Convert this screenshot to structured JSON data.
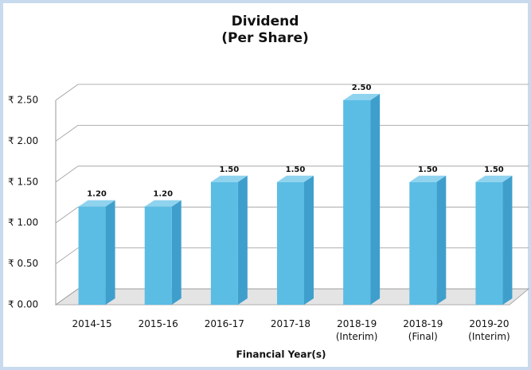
{
  "chart_data": {
    "type": "bar3d",
    "title": "Dividend",
    "subtitle": "(Per Share)",
    "x_label": "Financial Year(s)",
    "categories": [
      "2014-15",
      "2015-16",
      "2016-17",
      "2017-18",
      "2018-19 (Interim)",
      "2018-19 (Final)",
      "2019-20 (Interim)"
    ],
    "values": [
      1.2,
      1.2,
      1.5,
      1.5,
      2.5,
      1.5,
      1.5
    ],
    "value_labels": [
      "1.20",
      "1.20",
      "1.50",
      "1.50",
      "2.50",
      "1.50",
      "1.50"
    ],
    "color": "#5bbde4",
    "ylim": [
      0,
      2.5
    ],
    "yticks": [
      {
        "value": 0,
        "label": "₹ 0.00"
      },
      {
        "value": 0.5,
        "label": "₹ 0.50"
      },
      {
        "value": 1,
        "label": "₹ 1.00"
      },
      {
        "value": 1.5,
        "label": "₹ 1.50"
      },
      {
        "value": 2,
        "label": "₹ 2.00"
      },
      {
        "value": 2.5,
        "label": "₹ 2.50"
      }
    ],
    "grid": true
  }
}
